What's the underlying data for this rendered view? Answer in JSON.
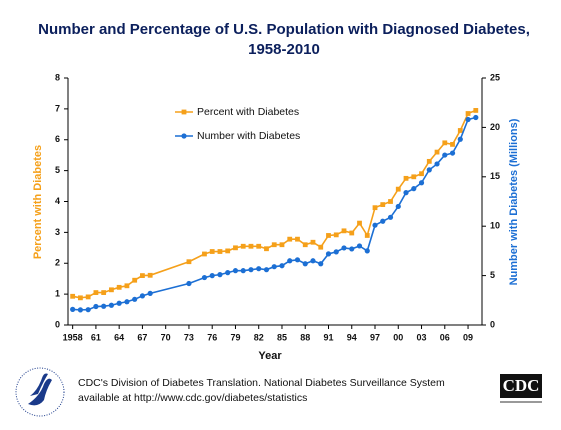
{
  "chart_data": {
    "type": "line",
    "title": "Number and Percentage of U.S. Population with Diagnosed Diabetes,",
    "subtitle": "1958-2010",
    "x_label": "Year",
    "y_label": "Percent with Diabetes",
    "y2_label": "Number with Diabetes (Millions)",
    "x": [
      1958,
      1959,
      1960,
      1961,
      1962,
      1963,
      1964,
      1965,
      1966,
      1967,
      1968,
      1973,
      1975,
      1976,
      1977,
      1978,
      1979,
      1980,
      1981,
      1982,
      1983,
      1984,
      1985,
      1986,
      1987,
      1988,
      1989,
      1990,
      1991,
      1992,
      1993,
      1994,
      1995,
      1996,
      1997,
      1998,
      1999,
      2000,
      2001,
      2002,
      2003,
      2004,
      2005,
      2006,
      2007,
      2008,
      2009,
      2010
    ],
    "series": [
      {
        "name": "Percent with Diabetes",
        "color": "#f5a01a",
        "marker": "square",
        "values": [
          0.93,
          0.88,
          0.91,
          1.05,
          1.05,
          1.14,
          1.22,
          1.27,
          1.45,
          1.6,
          1.61,
          2.05,
          2.3,
          2.38,
          2.38,
          2.4,
          2.5,
          2.55,
          2.55,
          2.55,
          2.47,
          2.6,
          2.6,
          2.78,
          2.78,
          2.6,
          2.68,
          2.52,
          2.9,
          2.92,
          3.05,
          2.98,
          3.3,
          2.9,
          3.8,
          3.9,
          4.0,
          4.4,
          4.75,
          4.8,
          4.9,
          5.3,
          5.6,
          5.9,
          5.85,
          6.3,
          6.85,
          6.95
        ]
      },
      {
        "name": "Number with Diabetes",
        "color": "#1c6fd4",
        "marker": "circle",
        "axis": "y2",
        "values": [
          1.58,
          1.53,
          1.55,
          1.87,
          1.9,
          2.0,
          2.2,
          2.35,
          2.6,
          2.95,
          3.2,
          4.2,
          4.8,
          5.0,
          5.1,
          5.3,
          5.5,
          5.5,
          5.6,
          5.7,
          5.6,
          5.9,
          6.0,
          6.5,
          6.6,
          6.2,
          6.5,
          6.2,
          7.2,
          7.4,
          7.8,
          7.7,
          8.0,
          7.5,
          10.1,
          10.5,
          10.9,
          12.0,
          13.4,
          13.8,
          14.4,
          15.7,
          16.3,
          17.2,
          17.4,
          18.8,
          20.8,
          21.0
        ]
      }
    ],
    "xlim": [
      1957.4,
      2010.8
    ],
    "xticks": [
      1958,
      {
        "value": 1961,
        "label": "61"
      },
      {
        "value": 1964,
        "label": "64"
      },
      {
        "value": 1967,
        "label": "67"
      },
      {
        "value": 1970,
        "label": "70"
      },
      {
        "value": 1973,
        "label": "73"
      },
      {
        "value": 1976,
        "label": "76"
      },
      {
        "value": 1979,
        "label": "79"
      },
      {
        "value": 1982,
        "label": "82"
      },
      {
        "value": 1985,
        "label": "85"
      },
      {
        "value": 1988,
        "label": "88"
      },
      {
        "value": 1991,
        "label": "91"
      },
      {
        "value": 1994,
        "label": "94"
      },
      {
        "value": 1997,
        "label": "97"
      },
      {
        "value": 2000,
        "label": "00"
      },
      {
        "value": 2003,
        "label": "03"
      },
      {
        "value": 2006,
        "label": "06"
      },
      {
        "value": 2009,
        "label": "09"
      }
    ],
    "ylim": [
      0,
      8
    ],
    "yticks": [
      0,
      1,
      2,
      3,
      4,
      5,
      6,
      7,
      8
    ],
    "y2lim": [
      0,
      25
    ],
    "y2ticks": [
      0,
      5,
      10,
      15,
      20,
      25
    ],
    "legend": "upper left",
    "footer": [
      "CDC's Division of Diabetes Translation.  National Diabetes Surveillance System",
      "available at http://www.cdc.gov/diabetes/statistics"
    ],
    "logo_text": "CDC"
  }
}
